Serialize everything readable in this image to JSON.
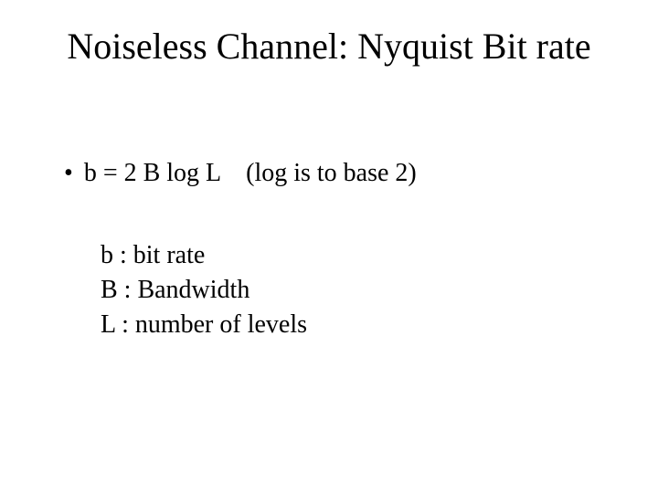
{
  "title": "Noiseless Channel: Nyquist Bit rate",
  "bullet": {
    "formula": "b = 2 B log L    (log is to base 2)"
  },
  "definitions": {
    "line1": "b :  bit rate",
    "line2": "B : Bandwidth",
    "line3": "L :  number of levels"
  }
}
